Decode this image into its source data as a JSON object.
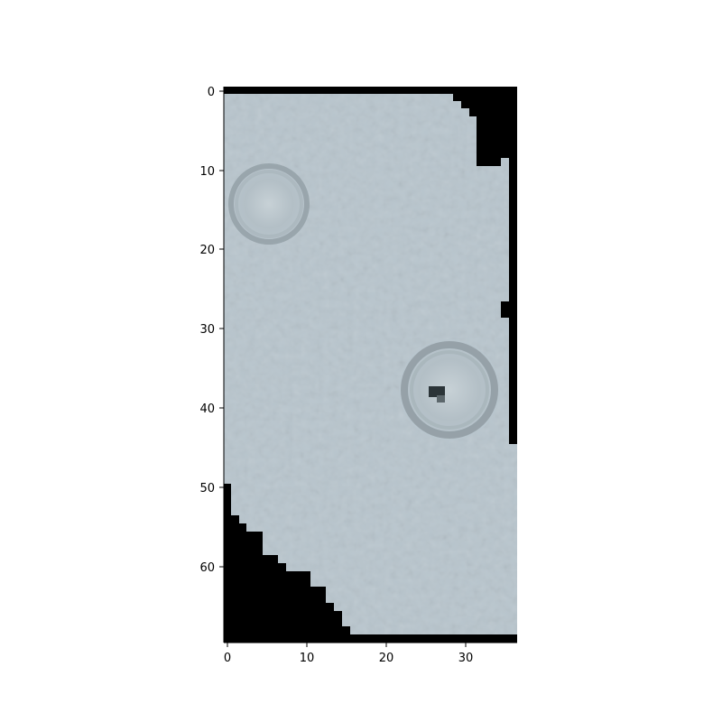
{
  "image": {
    "subject": "grayscale-blue concrete surface patch with two ring marks",
    "x_ticks": [
      "0",
      "10",
      "20",
      "30"
    ],
    "y_ticks": [
      "0",
      "10",
      "20",
      "30",
      "40",
      "50",
      "60"
    ],
    "colors": {
      "surface": "#b8c5cd",
      "background_mask": "#000000",
      "ring": "#8d999f"
    }
  }
}
